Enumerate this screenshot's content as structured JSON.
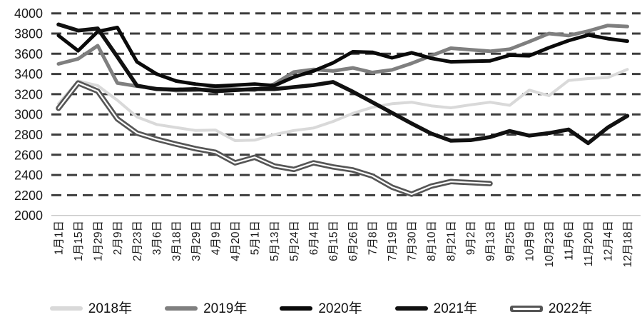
{
  "chart_data": {
    "type": "line",
    "title": "",
    "xlabel": "",
    "ylabel": "",
    "legend_position": "bottom",
    "background_color": "#ffffff",
    "grid": {
      "style": "dashed",
      "color": "#3d3d3d",
      "dash": "14 8",
      "line_width": 3
    },
    "axis_baseline_color": "#c8c8c8",
    "tick_label_color": "#1a1a1a",
    "y_axis": {
      "min": 2000,
      "max": 4000,
      "step": 200,
      "tick_labels": [
        "2000",
        "2200",
        "2400",
        "2600",
        "2800",
        "3000",
        "3200",
        "3400",
        "3600",
        "3800",
        "4000"
      ]
    },
    "categories": [
      "1月1日",
      "1月15日",
      "1月29日",
      "2月9日",
      "2月23日",
      "3月6日",
      "3月18日",
      "3月29日",
      "4月9日",
      "4月20日",
      "5月1日",
      "5月13日",
      "5月24日",
      "6月4日",
      "6月15日",
      "6月26日",
      "7月8日",
      "7月19日",
      "7月30日",
      "8月10日",
      "8月21日",
      "9月2日",
      "9月13日",
      "9月25日",
      "10月9日",
      "10月23日",
      "11月6日",
      "11月20日",
      "12月4日",
      "12月18日"
    ],
    "series": [
      {
        "name": "2018年",
        "color": "#d9d9d9",
        "width": 4,
        "values": [
          3105,
          3330,
          3285,
          3140,
          2975,
          2900,
          2870,
          2840,
          2845,
          2740,
          2745,
          2800,
          2840,
          2865,
          2930,
          3010,
          3070,
          3105,
          3120,
          3085,
          3065,
          3095,
          3120,
          3090,
          3240,
          3185,
          3335,
          3355,
          3365,
          3445
        ]
      },
      {
        "name": "2019年",
        "color": "#7f7f7f",
        "width": 5,
        "values": [
          3500,
          3550,
          3680,
          3310,
          3280,
          3255,
          3235,
          3240,
          3255,
          3250,
          3240,
          3300,
          3420,
          3445,
          3430,
          3460,
          3415,
          3440,
          3505,
          3580,
          3655,
          3640,
          3625,
          3645,
          3720,
          3800,
          3780,
          3825,
          3880,
          3870
        ]
      },
      {
        "name": "2020年",
        "color": "#0a0a0a",
        "width": 5,
        "values": [
          3780,
          3630,
          3820,
          3860,
          3520,
          3400,
          3330,
          3300,
          3280,
          3290,
          3300,
          3285,
          3370,
          3430,
          3510,
          3620,
          3615,
          3560,
          3610,
          3555,
          3520,
          3525,
          3530,
          3585,
          3580,
          3660,
          3730,
          3785,
          3750,
          3725
        ]
      },
      {
        "name": "2021年",
        "color": "#111111",
        "width": 5.5,
        "values": [
          3890,
          3830,
          3850,
          3570,
          3285,
          3250,
          3245,
          3250,
          3230,
          3240,
          3250,
          3250,
          3270,
          3290,
          3320,
          3225,
          3120,
          3015,
          2910,
          2810,
          2740,
          2745,
          2775,
          2835,
          2790,
          2815,
          2850,
          2715,
          2870,
          2985
        ]
      },
      {
        "name": "2022年",
        "color": "#555555",
        "width": 7.5,
        "core_color": "#ffffff",
        "core_width": 2.2,
        "values": [
          3060,
          3310,
          3230,
          2955,
          2815,
          2755,
          2705,
          2660,
          2625,
          2520,
          2575,
          2490,
          2455,
          2520,
          2480,
          2450,
          2390,
          2280,
          2210,
          2290,
          2335,
          2325,
          2315
        ]
      }
    ]
  }
}
